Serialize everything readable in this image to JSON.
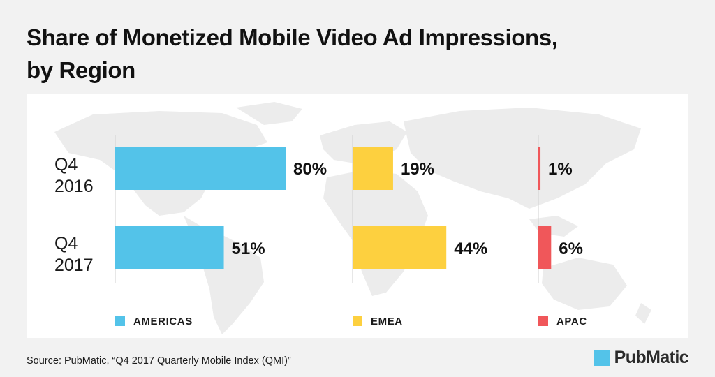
{
  "title_lines": [
    "Share of Monetized Mobile Video Ad Impressions,",
    "by Region"
  ],
  "source": "Source: PubMatic, “Q4 2017 Quarterly Mobile Index (QMI)”",
  "logo_text": "PubMatic",
  "colors": {
    "americas": "#53c3e9",
    "emea": "#fdd03f",
    "apac": "#f0575a",
    "background": "#f2f2f2",
    "panel": "#ffffff",
    "map": "#ececec",
    "text": "#111111"
  },
  "chart_data": {
    "type": "bar",
    "orientation": "horizontal",
    "title": "Share of Monetized Mobile Video Ad Impressions, by Region",
    "categories": [
      "Q4 2016",
      "Q4 2017"
    ],
    "category_lines": [
      [
        "Q4",
        "2016"
      ],
      [
        "Q4",
        "2017"
      ]
    ],
    "series": [
      {
        "name": "AMERICAS",
        "values": [
          80,
          51
        ],
        "labels": [
          "80%",
          "51%"
        ],
        "color": "#53c3e9"
      },
      {
        "name": "EMEA",
        "values": [
          19,
          44
        ],
        "labels": [
          "19%",
          "44%"
        ],
        "color": "#fdd03f"
      },
      {
        "name": "APAC",
        "values": [
          1,
          6
        ],
        "labels": [
          "1%",
          "6%"
        ],
        "color": "#f0575a"
      }
    ],
    "unit": "%",
    "xlim": [
      0,
      100
    ],
    "grid": false,
    "legend_position": "bottom"
  }
}
